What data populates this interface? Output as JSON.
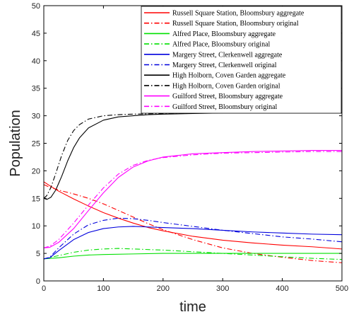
{
  "chart_data": {
    "type": "line",
    "title": "",
    "xlabel": "time",
    "ylabel": "Population",
    "xlim": [
      0,
      500
    ],
    "ylim": [
      0,
      50
    ],
    "xticks": [
      0,
      100,
      200,
      300,
      400,
      500
    ],
    "yticks": [
      0,
      5,
      10,
      15,
      20,
      25,
      30,
      35,
      40,
      45,
      50
    ],
    "grid": false,
    "legend_position": "top-right",
    "series": [
      {
        "name": "Russell Square Station, Bloomsbury aggregate",
        "color": "#ff0000",
        "style": "solid",
        "x": [
          0,
          10,
          25,
          50,
          75,
          100,
          125,
          150,
          175,
          200,
          250,
          300,
          350,
          400,
          450,
          500
        ],
        "y": [
          18,
          17.3,
          16.3,
          14.9,
          13.6,
          12.4,
          11.4,
          10.5,
          9.7,
          9.1,
          8.1,
          7.4,
          6.9,
          6.5,
          6.2,
          5.8
        ]
      },
      {
        "name": "Russell Square Station, Bloomsbury original",
        "color": "#ff0000",
        "style": "dashdot",
        "x": [
          0,
          10,
          25,
          50,
          75,
          100,
          125,
          150,
          175,
          200,
          250,
          300,
          350,
          400,
          450,
          500
        ],
        "y": [
          17.5,
          17,
          16.5,
          15.8,
          15.0,
          14.0,
          12.8,
          11.6,
          10.4,
          9.3,
          7.5,
          6.0,
          5.0,
          4.3,
          3.7,
          3.3
        ]
      },
      {
        "name": "Alfred Place, Bloomsbury aggregate",
        "color": "#00e000",
        "style": "solid",
        "x": [
          0,
          25,
          50,
          75,
          100,
          150,
          200,
          250,
          300,
          400,
          500
        ],
        "y": [
          4,
          4.2,
          4.5,
          4.7,
          4.8,
          4.9,
          5.0,
          5.0,
          5.0,
          5.0,
          5.0
        ]
      },
      {
        "name": "Alfred Place, Bloomsbury original",
        "color": "#00e000",
        "style": "dashdot",
        "x": [
          0,
          25,
          50,
          75,
          100,
          125,
          150,
          200,
          250,
          300,
          350,
          400,
          450,
          500
        ],
        "y": [
          4,
          4.6,
          5.2,
          5.6,
          5.8,
          5.9,
          5.8,
          5.6,
          5.3,
          5.0,
          4.7,
          4.4,
          4.1,
          3.9
        ]
      },
      {
        "name": "Margery Street, Clerkenwell aggregate",
        "color": "#0000dd",
        "style": "solid",
        "x": [
          0,
          10,
          25,
          50,
          75,
          100,
          125,
          150,
          175,
          200,
          250,
          300,
          350,
          400,
          450,
          500
        ],
        "y": [
          4,
          4.2,
          5.5,
          7.5,
          8.8,
          9.5,
          9.8,
          9.9,
          9.8,
          9.7,
          9.5,
          9.2,
          8.9,
          8.7,
          8.5,
          8.4
        ]
      },
      {
        "name": "Margery Street, Clerkenwell original",
        "color": "#0000dd",
        "style": "dashdot",
        "x": [
          0,
          10,
          25,
          50,
          75,
          100,
          125,
          150,
          175,
          200,
          250,
          300,
          350,
          400,
          450,
          500
        ],
        "y": [
          4,
          4.3,
          6.0,
          8.5,
          10.2,
          11.0,
          11.4,
          11.3,
          11.0,
          10.6,
          9.9,
          9.2,
          8.6,
          8.0,
          7.6,
          7.1
        ]
      },
      {
        "name": "High Holborn, Coven Garden aggregate",
        "color": "#000000",
        "style": "solid",
        "x": [
          0,
          5,
          12,
          20,
          30,
          40,
          50,
          60,
          75,
          100,
          125,
          150,
          175,
          200,
          250,
          300,
          400,
          500
        ],
        "y": [
          15,
          14.8,
          15.2,
          16.5,
          19.0,
          21.8,
          24.2,
          26.0,
          27.8,
          29.2,
          29.8,
          30.0,
          30.2,
          30.3,
          30.4,
          30.5,
          30.5,
          30.5
        ]
      },
      {
        "name": "High Holborn, Coven Garden original",
        "color": "#000000",
        "style": "dashdot",
        "x": [
          0,
          5,
          12,
          20,
          30,
          40,
          50,
          60,
          75,
          100,
          125,
          150,
          200,
          250,
          300,
          400,
          500
        ],
        "y": [
          15,
          15.5,
          17.0,
          19.5,
          22.8,
          25.5,
          27.3,
          28.4,
          29.4,
          30.0,
          30.2,
          30.3,
          30.4,
          30.5,
          30.6,
          30.6,
          30.7
        ]
      },
      {
        "name": "Guilford Street, Bloomsbury aggregate",
        "color": "#ff00ff",
        "style": "solid",
        "x": [
          0,
          10,
          25,
          50,
          75,
          100,
          125,
          150,
          175,
          200,
          250,
          300,
          350,
          400,
          450,
          500
        ],
        "y": [
          6,
          6.1,
          7.0,
          9.5,
          12.8,
          16.0,
          18.8,
          20.7,
          21.8,
          22.5,
          23.1,
          23.3,
          23.5,
          23.6,
          23.7,
          23.7
        ]
      },
      {
        "name": "Guilford Street, Bloomsbury original",
        "color": "#ff00ff",
        "style": "dashdot",
        "x": [
          0,
          10,
          25,
          50,
          75,
          100,
          125,
          150,
          175,
          200,
          250,
          300,
          350,
          400,
          450,
          500
        ],
        "y": [
          6,
          6.3,
          7.5,
          10.5,
          13.8,
          16.9,
          19.4,
          21.0,
          21.9,
          22.4,
          22.9,
          23.2,
          23.3,
          23.4,
          23.5,
          23.5
        ]
      }
    ]
  }
}
